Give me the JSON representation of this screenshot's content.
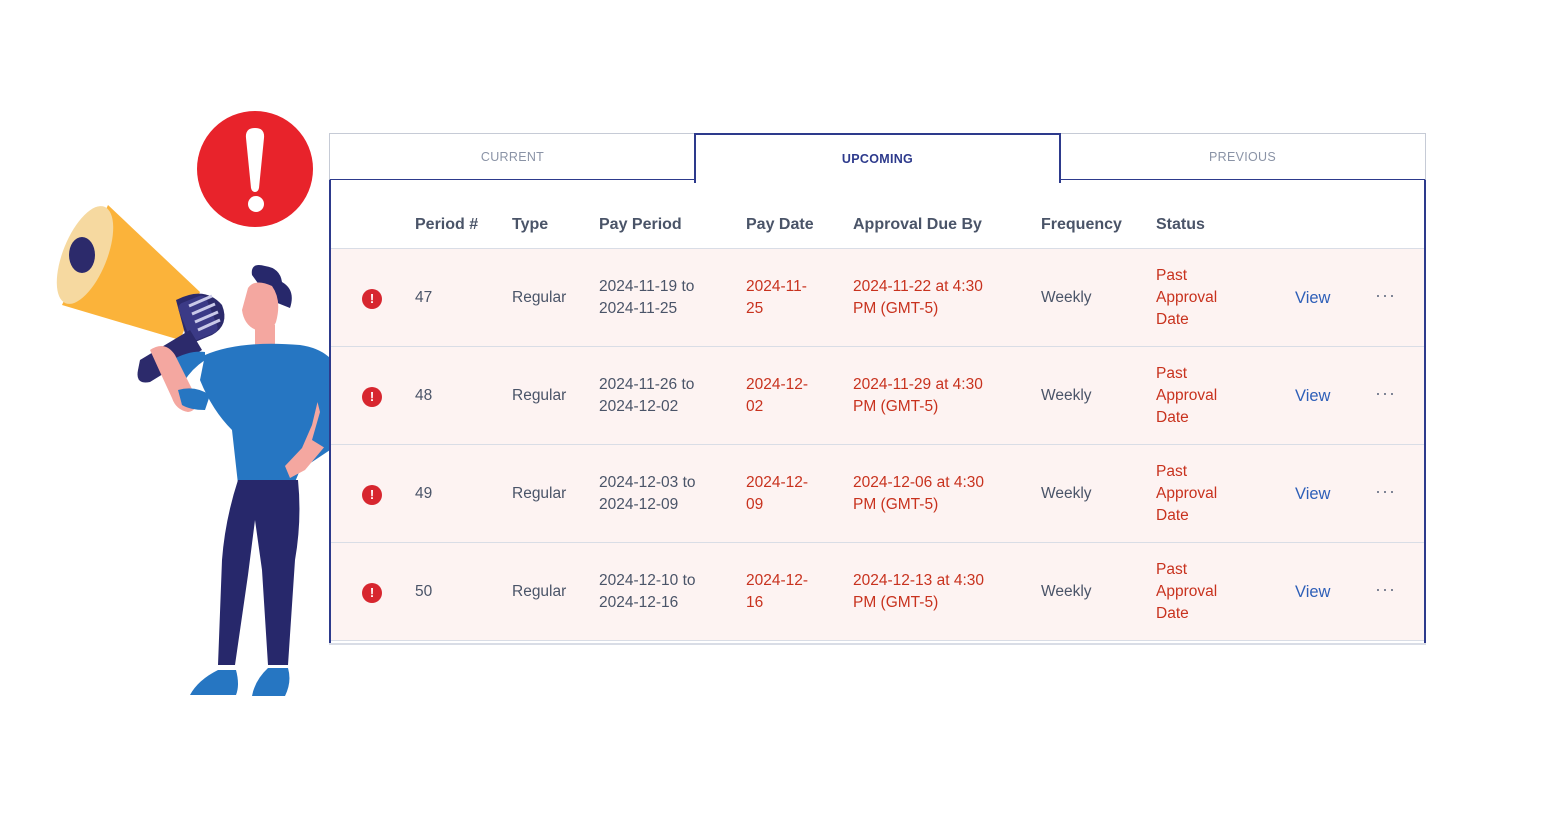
{
  "tabs": {
    "current": "CURRENT",
    "upcoming": "UPCOMING",
    "previous": "PREVIOUS",
    "active": "upcoming"
  },
  "table": {
    "headers": {
      "period": "Period #",
      "type": "Type",
      "pay_period": "Pay Period",
      "pay_date": "Pay Date",
      "approval_due": "Approval Due By",
      "frequency": "Frequency",
      "status": "Status"
    },
    "rows": [
      {
        "period": "47",
        "type": "Regular",
        "pay_period_l1": "2024-11-19 to",
        "pay_period_l2": "2024-11-25",
        "pay_date_l1": "2024-11-",
        "pay_date_l2": "25",
        "approval_l1": "2024-11-22 at 4:30",
        "approval_l2": "PM (GMT-5)",
        "frequency": "Weekly",
        "status_l1": "Past",
        "status_l2": "Approval",
        "status_l3": "Date",
        "view": "View",
        "alert_icon": "!",
        "more_icon": "···"
      },
      {
        "period": "48",
        "type": "Regular",
        "pay_period_l1": "2024-11-26 to",
        "pay_period_l2": "2024-12-02",
        "pay_date_l1": "2024-12-",
        "pay_date_l2": "02",
        "approval_l1": "2024-11-29 at 4:30",
        "approval_l2": "PM (GMT-5)",
        "frequency": "Weekly",
        "status_l1": "Past",
        "status_l2": "Approval",
        "status_l3": "Date",
        "view": "View",
        "alert_icon": "!",
        "more_icon": "···"
      },
      {
        "period": "49",
        "type": "Regular",
        "pay_period_l1": "2024-12-03 to",
        "pay_period_l2": "2024-12-09",
        "pay_date_l1": "2024-12-",
        "pay_date_l2": "09",
        "approval_l1": "2024-12-06 at 4:30",
        "approval_l2": "PM (GMT-5)",
        "frequency": "Weekly",
        "status_l1": "Past",
        "status_l2": "Approval",
        "status_l3": "Date",
        "view": "View",
        "alert_icon": "!",
        "more_icon": "···"
      },
      {
        "period": "50",
        "type": "Regular",
        "pay_period_l1": "2024-12-10 to",
        "pay_period_l2": "2024-12-16",
        "pay_date_l1": "2024-12-",
        "pay_date_l2": "16",
        "approval_l1": "2024-12-13 at 4:30",
        "approval_l2": "PM (GMT-5)",
        "frequency": "Weekly",
        "status_l1": "Past",
        "status_l2": "Approval",
        "status_l3": "Date",
        "view": "View",
        "alert_icon": "!",
        "more_icon": "···"
      }
    ]
  },
  "illustration": {
    "alert_badge_icon": "exclamation-icon",
    "megaphone_icon": "megaphone-icon",
    "colors": {
      "alert_red": "#e8232b",
      "megaphone_yellow": "#fbb33a",
      "shirt_blue": "#2676c2",
      "pants_navy": "#27286b",
      "skin": "#f4a7a0"
    }
  },
  "colors": {
    "accent": "#2d3a8c",
    "row_bg": "#fdf3f2",
    "warning_text": "#c8321e",
    "link": "#2e5fb8",
    "alert_icon": "#d7262f"
  }
}
